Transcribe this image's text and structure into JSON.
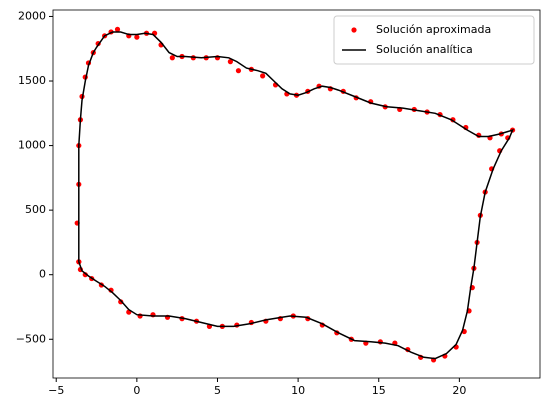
{
  "chart_data": {
    "type": "line",
    "xlim": [
      -5.2,
      25.0
    ],
    "ylim": [
      -800,
      2050
    ],
    "xticks": [
      {
        "value": -5,
        "label": "−5"
      },
      0,
      5,
      10,
      15,
      20
    ],
    "yticks": [
      {
        "value": -500,
        "label": "−500"
      },
      0,
      500,
      1000,
      1500,
      2000
    ],
    "grid": false,
    "legend": "upper right",
    "series": [
      {
        "name": "Solución aproximada",
        "color": "#ff0000",
        "type": "scatter",
        "x": [
          -3.6,
          -3.7,
          -3.6,
          -3.6,
          -3.5,
          -3.4,
          -3.2,
          -3.0,
          -2.7,
          -2.4,
          -2.0,
          -1.6,
          -1.2,
          -0.5,
          0.0,
          0.6,
          1.1,
          1.5,
          2.2,
          2.8,
          3.5,
          4.3,
          5.0,
          5.8,
          6.3,
          7.1,
          7.8,
          8.6,
          9.3,
          9.9,
          10.6,
          11.3,
          12.0,
          12.8,
          13.6,
          14.5,
          15.4,
          16.3,
          17.2,
          18.0,
          18.8,
          19.6,
          20.4,
          21.2,
          21.9,
          22.6,
          23.3,
          23.0,
          22.5,
          22.0,
          21.6,
          21.3,
          21.1,
          20.9,
          20.8,
          20.6,
          20.3,
          19.8,
          19.1,
          18.4,
          17.6,
          16.8,
          16.0,
          15.1,
          14.2,
          13.3,
          12.4,
          11.5,
          10.6,
          9.7,
          8.9,
          8.0,
          7.1,
          6.2,
          5.3,
          4.5,
          3.7,
          2.8,
          1.9,
          1.0,
          0.2,
          -0.5,
          -1.0,
          -1.6,
          -2.2,
          -2.8,
          -3.2,
          -3.5,
          -3.6
        ],
        "values": [
          100,
          400,
          700,
          1000,
          1200,
          1380,
          1530,
          1640,
          1720,
          1790,
          1850,
          1880,
          1900,
          1850,
          1840,
          1870,
          1870,
          1780,
          1680,
          1690,
          1680,
          1680,
          1680,
          1650,
          1580,
          1590,
          1540,
          1470,
          1400,
          1390,
          1420,
          1460,
          1440,
          1420,
          1370,
          1340,
          1300,
          1280,
          1280,
          1260,
          1240,
          1200,
          1140,
          1080,
          1060,
          1090,
          1120,
          1060,
          960,
          820,
          640,
          460,
          250,
          50,
          -100,
          -280,
          -440,
          -560,
          -630,
          -660,
          -640,
          -580,
          -530,
          -520,
          -530,
          -500,
          -450,
          -390,
          -340,
          -320,
          -340,
          -360,
          -370,
          -390,
          -400,
          -400,
          -360,
          -340,
          -330,
          -310,
          -320,
          -290,
          -210,
          -120,
          -80,
          -30,
          0,
          40,
          100
        ]
      },
      {
        "name": "Solución analítica",
        "color": "#000000",
        "type": "line",
        "x": [
          -3.6,
          -3.6,
          -3.6,
          -3.5,
          -3.4,
          -3.2,
          -3.0,
          -2.7,
          -2.5,
          -2.0,
          -1.5,
          -1.0,
          -0.5,
          0.0,
          0.5,
          1.0,
          1.5,
          2.0,
          2.5,
          3.0,
          4.0,
          5.0,
          5.7,
          6.2,
          6.8,
          7.5,
          8.0,
          8.5,
          9.0,
          9.5,
          10.0,
          10.5,
          11.0,
          11.5,
          12.0,
          12.5,
          13.5,
          14.5,
          15.5,
          16.5,
          17.5,
          18.5,
          19.5,
          20.5,
          21.2,
          21.8,
          22.5,
          23.3,
          23.1,
          22.6,
          22.1,
          21.6,
          21.3,
          21.1,
          20.9,
          20.7,
          20.5,
          20.2,
          19.8,
          19.2,
          18.5,
          17.8,
          17.0,
          16.2,
          15.4,
          14.5,
          13.5,
          12.5,
          11.5,
          10.5,
          9.5,
          9.0,
          8.0,
          7.0,
          6.0,
          5.0,
          4.0,
          3.0,
          2.0,
          1.0,
          0.0,
          -0.5,
          -1.0,
          -1.5,
          -2.0,
          -2.5,
          -3.0,
          -3.4,
          -3.6
        ],
        "values": [
          100,
          500,
          1000,
          1200,
          1350,
          1500,
          1620,
          1720,
          1760,
          1850,
          1880,
          1880,
          1860,
          1860,
          1870,
          1860,
          1800,
          1720,
          1690,
          1690,
          1680,
          1690,
          1680,
          1650,
          1600,
          1580,
          1560,
          1500,
          1440,
          1400,
          1390,
          1410,
          1440,
          1460,
          1450,
          1430,
          1380,
          1330,
          1300,
          1290,
          1270,
          1250,
          1200,
          1120,
          1070,
          1070,
          1090,
          1120,
          1060,
          960,
          820,
          640,
          450,
          250,
          50,
          -100,
          -280,
          -430,
          -540,
          -610,
          -650,
          -640,
          -600,
          -550,
          -530,
          -520,
          -510,
          -450,
          -380,
          -330,
          -320,
          -330,
          -350,
          -380,
          -400,
          -400,
          -370,
          -340,
          -320,
          -320,
          -310,
          -270,
          -200,
          -140,
          -90,
          -50,
          -10,
          30,
          100
        ]
      }
    ]
  }
}
